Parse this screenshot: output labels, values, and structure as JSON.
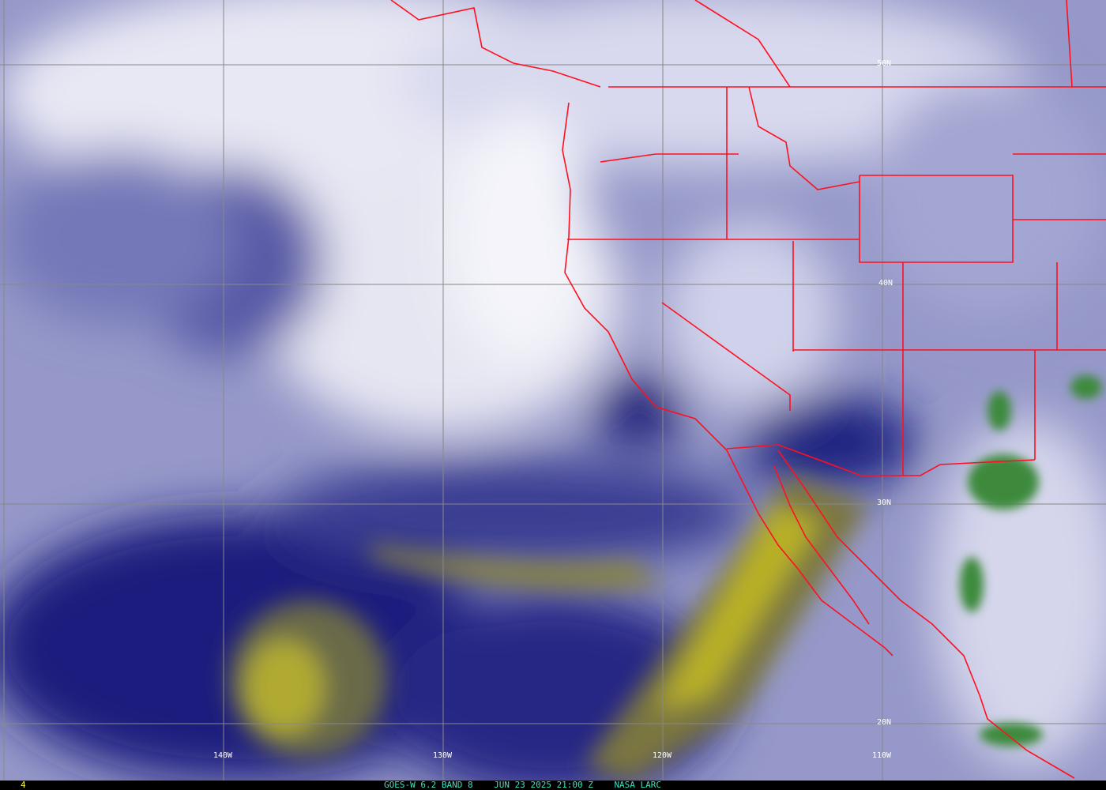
{
  "image": {
    "product": "GOES-W 6.2 BAND 8",
    "datetime": "JUN 23 2025 21:00 Z",
    "source": "NASA LARC",
    "frame_number": "4",
    "border_color": "#ff1020",
    "grid_color": "#808080",
    "caption_color": "#40e0c0"
  },
  "longitude_labels": [
    "140W",
    "130W",
    "120W",
    "110W"
  ],
  "latitude_labels": [
    "50N",
    "40N",
    "30N",
    "20N"
  ]
}
